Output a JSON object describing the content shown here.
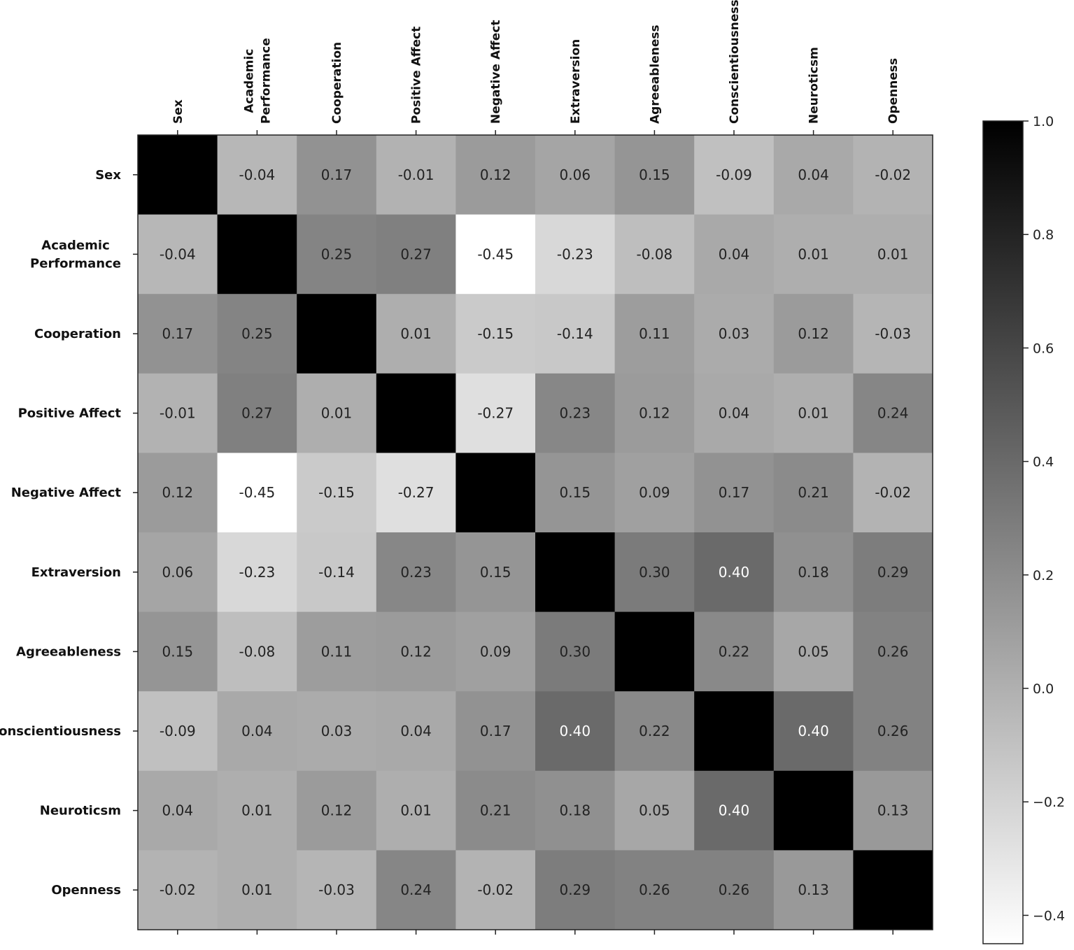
{
  "chart_data": {
    "type": "heatmap",
    "variables": [
      [
        "Sex"
      ],
      [
        "Academic",
        "Performance"
      ],
      [
        "Cooperation"
      ],
      [
        "Positive Affect"
      ],
      [
        "Negative Affect"
      ],
      [
        "Extraversion"
      ],
      [
        "Agreeableness"
      ],
      [
        "Conscientiousness"
      ],
      [
        "Neuroticsm"
      ],
      [
        "Openness"
      ]
    ],
    "values": [
      [
        1.0,
        -0.04,
        0.17,
        -0.01,
        0.12,
        0.06,
        0.15,
        -0.09,
        0.04,
        -0.02
      ],
      [
        -0.04,
        1.0,
        0.25,
        0.27,
        -0.45,
        -0.23,
        -0.08,
        0.04,
        0.01,
        0.01
      ],
      [
        0.17,
        0.25,
        1.0,
        0.01,
        -0.15,
        -0.14,
        0.11,
        0.03,
        0.12,
        -0.03
      ],
      [
        -0.01,
        0.27,
        0.01,
        1.0,
        -0.27,
        0.23,
        0.12,
        0.04,
        0.01,
        0.24
      ],
      [
        0.12,
        -0.45,
        -0.15,
        -0.27,
        1.0,
        0.15,
        0.09,
        0.17,
        0.21,
        -0.02
      ],
      [
        0.06,
        -0.23,
        -0.14,
        0.23,
        0.15,
        1.0,
        0.3,
        0.4,
        0.18,
        0.29
      ],
      [
        0.15,
        -0.08,
        0.11,
        0.12,
        0.09,
        0.3,
        1.0,
        0.22,
        0.05,
        0.26
      ],
      [
        -0.09,
        0.04,
        0.03,
        0.04,
        0.17,
        0.4,
        0.22,
        1.0,
        0.4,
        0.26
      ],
      [
        0.04,
        0.01,
        0.12,
        0.01,
        0.21,
        0.18,
        0.05,
        0.4,
        1.0,
        0.13
      ],
      [
        -0.02,
        0.01,
        -0.03,
        0.24,
        -0.02,
        0.29,
        0.26,
        0.26,
        0.13,
        1.0
      ]
    ],
    "show_values_on_diagonal": false,
    "value_decimals": 2,
    "colorbar": {
      "min": -0.45,
      "max": 1.0,
      "ticks": [
        1.0,
        0.8,
        0.6,
        0.4,
        0.2,
        0.0,
        -0.2,
        -0.4
      ],
      "tick_labels": [
        "1.0",
        "0.8",
        "0.6",
        "0.4",
        "0.2",
        "0.0",
        "−0.2",
        "−0.4"
      ],
      "placement": "right",
      "colormap": "grayscale, white at minimum to black at maximum"
    },
    "title": "",
    "xlabel": "",
    "ylabel": "",
    "x_tick_position": "top",
    "grid": false
  }
}
